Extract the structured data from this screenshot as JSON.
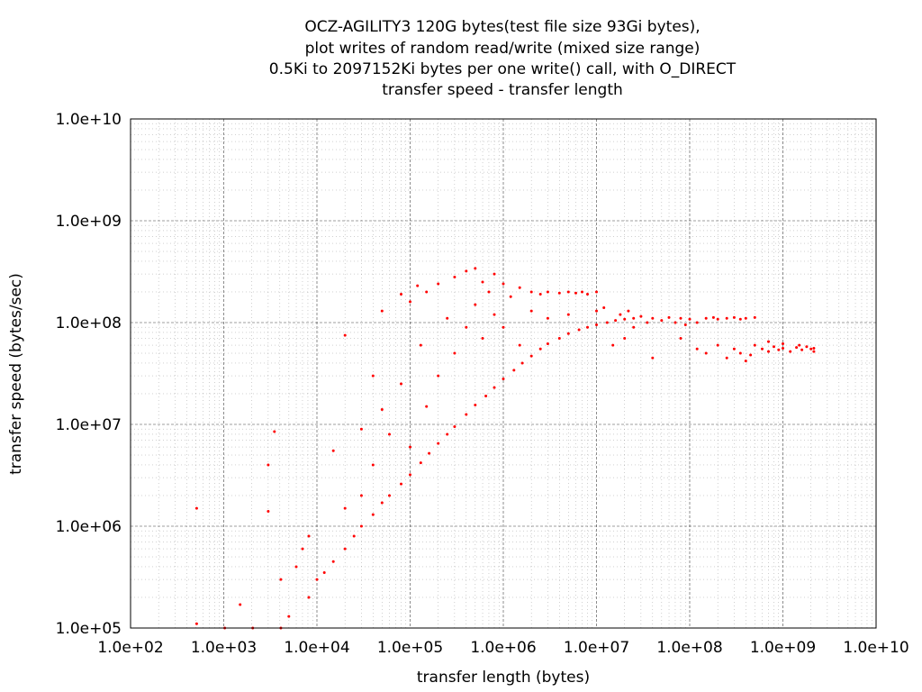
{
  "chart_data": {
    "type": "scatter",
    "title": [
      "OCZ-AGILITY3 120G bytes(test file size 93Gi bytes),",
      "plot writes of random read/write (mixed size range)",
      "0.5Ki to 2097152Ki bytes per one write() call, with O_DIRECT",
      "transfer speed - transfer length"
    ],
    "xlabel": "transfer length (bytes)",
    "ylabel": "transfer speed (bytes/sec)",
    "x_scale": "log",
    "y_scale": "log",
    "xlim": [
      100,
      10000000000
    ],
    "ylim": [
      100000,
      10000000000
    ],
    "x_ticks": [
      "1.0e+02",
      "1.0e+03",
      "1.0e+04",
      "1.0e+05",
      "1.0e+06",
      "1.0e+07",
      "1.0e+08",
      "1.0e+09",
      "1.0e+10"
    ],
    "y_ticks": [
      "1.0e+05",
      "1.0e+06",
      "1.0e+07",
      "1.0e+08",
      "1.0e+09",
      "1.0e+10"
    ],
    "grid": true,
    "point_color": "#ff0000",
    "series": [
      {
        "values": [
          [
            512,
            1500000
          ],
          [
            512,
            110000
          ],
          [
            1024,
            100000
          ],
          [
            1500,
            170000
          ],
          [
            2048,
            100000
          ],
          [
            3000,
            4000000
          ],
          [
            3000,
            1400000
          ],
          [
            3500,
            8500000
          ],
          [
            4096,
            100000
          ],
          [
            4096,
            300000
          ],
          [
            5000,
            130000
          ],
          [
            6000,
            400000
          ],
          [
            7000,
            600000
          ],
          [
            8192,
            200000
          ],
          [
            8192,
            800000
          ],
          [
            10000,
            300000
          ],
          [
            12000,
            350000
          ],
          [
            15000,
            450000
          ],
          [
            20000,
            600000
          ],
          [
            25000,
            800000
          ],
          [
            30000,
            1000000
          ],
          [
            40000,
            1300000
          ],
          [
            50000,
            1700000
          ],
          [
            60000,
            2000000
          ],
          [
            80000,
            2600000
          ],
          [
            100000,
            3200000
          ],
          [
            130000,
            4200000
          ],
          [
            160000,
            5200000
          ],
          [
            200000,
            6500000
          ],
          [
            250000,
            8000000
          ],
          [
            300000,
            9500000
          ],
          [
            400000,
            12500000
          ],
          [
            500000,
            15500000
          ],
          [
            650000,
            19000000
          ],
          [
            800000,
            23000000
          ],
          [
            1000000,
            28000000
          ],
          [
            1300000,
            34000000
          ],
          [
            1600000,
            40000000
          ],
          [
            2000000,
            47000000
          ],
          [
            2500000,
            55000000
          ],
          [
            3000000,
            62000000
          ],
          [
            4000000,
            70000000
          ],
          [
            5000000,
            78000000
          ],
          [
            6500000,
            85000000
          ],
          [
            8000000,
            90000000
          ],
          [
            10000000,
            95000000
          ],
          [
            13000000,
            100000000
          ],
          [
            16000000,
            105000000
          ],
          [
            20000000,
            108000000
          ],
          [
            25000000,
            110000000
          ],
          [
            15000,
            5500000
          ],
          [
            20000,
            1500000
          ],
          [
            20000,
            75000000
          ],
          [
            30000,
            9000000
          ],
          [
            30000,
            2000000
          ],
          [
            40000,
            30000000
          ],
          [
            40000,
            4000000
          ],
          [
            50000,
            130000000
          ],
          [
            50000,
            14000000
          ],
          [
            60000,
            8000000
          ],
          [
            80000,
            190000000
          ],
          [
            80000,
            25000000
          ],
          [
            100000,
            160000000
          ],
          [
            100000,
            6000000
          ],
          [
            120000,
            230000000
          ],
          [
            130000,
            60000000
          ],
          [
            150000,
            200000000
          ],
          [
            150000,
            15000000
          ],
          [
            200000,
            240000000
          ],
          [
            200000,
            30000000
          ],
          [
            250000,
            110000000
          ],
          [
            300000,
            280000000
          ],
          [
            300000,
            50000000
          ],
          [
            400000,
            320000000
          ],
          [
            400000,
            90000000
          ],
          [
            500000,
            150000000
          ],
          [
            500000,
            340000000
          ],
          [
            600000,
            250000000
          ],
          [
            600000,
            70000000
          ],
          [
            700000,
            200000000
          ],
          [
            800000,
            300000000
          ],
          [
            800000,
            120000000
          ],
          [
            1000000,
            240000000
          ],
          [
            1000000,
            90000000
          ],
          [
            1200000,
            180000000
          ],
          [
            1500000,
            220000000
          ],
          [
            1500000,
            60000000
          ],
          [
            2000000,
            200000000
          ],
          [
            2000000,
            130000000
          ],
          [
            2500000,
            190000000
          ],
          [
            3000000,
            200000000
          ],
          [
            3000000,
            110000000
          ],
          [
            4000000,
            195000000
          ],
          [
            5000000,
            200000000
          ],
          [
            5000000,
            120000000
          ],
          [
            6000000,
            195000000
          ],
          [
            7000000,
            200000000
          ],
          [
            8000000,
            190000000
          ],
          [
            10000000,
            200000000
          ],
          [
            10000000,
            130000000
          ],
          [
            12000000,
            140000000
          ],
          [
            15000000,
            60000000
          ],
          [
            18000000,
            120000000
          ],
          [
            20000000,
            70000000
          ],
          [
            22000000,
            130000000
          ],
          [
            25000000,
            90000000
          ],
          [
            30000000,
            115000000
          ],
          [
            35000000,
            100000000
          ],
          [
            40000000,
            110000000
          ],
          [
            40000000,
            45000000
          ],
          [
            50000000,
            105000000
          ],
          [
            60000000,
            112000000
          ],
          [
            70000000,
            100000000
          ],
          [
            80000000,
            110000000
          ],
          [
            90000000,
            95000000
          ],
          [
            100000000,
            108000000
          ],
          [
            120000000,
            100000000
          ],
          [
            150000000,
            110000000
          ],
          [
            180000000,
            112000000
          ],
          [
            200000000,
            108000000
          ],
          [
            250000000,
            110000000
          ],
          [
            300000000,
            112000000
          ],
          [
            350000000,
            108000000
          ],
          [
            400000000,
            110000000
          ],
          [
            500000000,
            112000000
          ],
          [
            80000000,
            70000000
          ],
          [
            120000000,
            55000000
          ],
          [
            150000000,
            50000000
          ],
          [
            200000000,
            60000000
          ],
          [
            250000000,
            45000000
          ],
          [
            300000000,
            55000000
          ],
          [
            350000000,
            50000000
          ],
          [
            400000000,
            42000000
          ],
          [
            450000000,
            48000000
          ],
          [
            500000000,
            60000000
          ],
          [
            600000000,
            55000000
          ],
          [
            700000000,
            52000000
          ],
          [
            800000000,
            58000000
          ],
          [
            900000000,
            54000000
          ],
          [
            1000000000,
            56000000
          ],
          [
            1200000000,
            52000000
          ],
          [
            1400000000,
            57000000
          ],
          [
            1600000000,
            54000000
          ],
          [
            1800000000,
            58000000
          ],
          [
            2000000000,
            55000000
          ],
          [
            2147483648,
            56000000
          ],
          [
            2147483648,
            52000000
          ],
          [
            1000000000,
            62000000
          ],
          [
            1500000000,
            60000000
          ],
          [
            700000000,
            65000000
          ]
        ]
      }
    ]
  }
}
